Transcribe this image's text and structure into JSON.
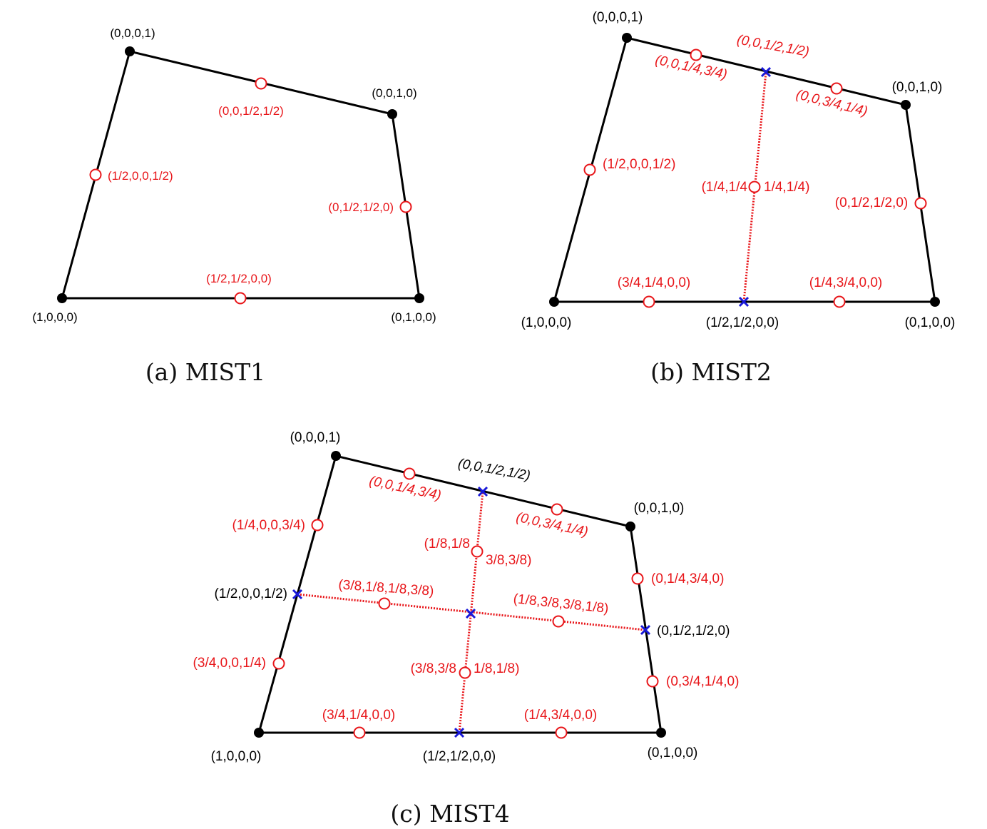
{
  "colors": {
    "edge": "#000000",
    "vertex": "#000000",
    "midpoint": "#e8161a",
    "label_black": "#000000",
    "label_red": "#e8161a",
    "cross": "#1818d8",
    "dotted": "#e8161a"
  },
  "icons": {
    "vertex": "filled-black-circle",
    "midpoint": "hollow-red-circle",
    "subdivision": "blue-x-marker"
  },
  "panels": [
    {
      "caption": "(a) MIST1",
      "vertex_labels": [
        "(1,0,0,0)",
        "(0,1,0,0)",
        "(0,0,1,0)",
        "(0,0,0,1)"
      ],
      "node_labels": [
        "(1/2,1/2,0,0)",
        "(0,1/2,1/2,0)",
        "(0,0,1/2,1/2)",
        "(1/2,0,0,1/2)"
      ]
    },
    {
      "caption": "(b) MIST2",
      "vertex_labels": [
        "(1,0,0,0)",
        "(0,1,0,0)",
        "(0,0,1,0)",
        "(0,0,0,1)"
      ],
      "cross_labels": [
        "(1/2,1/2,0,0)",
        "(0,0,1/2,1/2)"
      ],
      "node_labels": [
        "(3/4,1/4,0,0)",
        "(1/4,3/4,0,0)",
        "(0,1/2,1/2,0)",
        "(0,0,3/4,1/4)",
        "(0,0,1/4,3/4)",
        "(1/2,0,0,1/2)",
        "(1/4,1/4",
        "1/4,1/4)"
      ]
    },
    {
      "caption": "(c) MIST4",
      "vertex_labels": [
        "(1,0,0,0)",
        "(0,1,0,0)",
        "(0,0,1,0)",
        "(0,0,0,1)"
      ],
      "cross_labels": [
        "(1/2,1/2,0,0)",
        "(0,1/2,1/2,0)",
        "(0,0,1/2,1/2)",
        "(1/2,0,0,1/2)"
      ],
      "node_labels": [
        "(3/4,1/4,0,0)",
        "(1/4,3/4,0,0)",
        "(0,3/4,1/4,0)",
        "(0,1/4,3/4,0)",
        "(0,0,3/4,1/4)",
        "(0,0,1/4,3/4)",
        "(1/4,0,0,3/4)",
        "(3/4,0,0,1/4)",
        "(3/8,1/8,1/8,3/8)",
        "(1/8,3/8,3/8,1/8)",
        "(1/8,1/8",
        "3/8,3/8)",
        "(3/8,3/8",
        "1/8,1/8)"
      ]
    }
  ]
}
